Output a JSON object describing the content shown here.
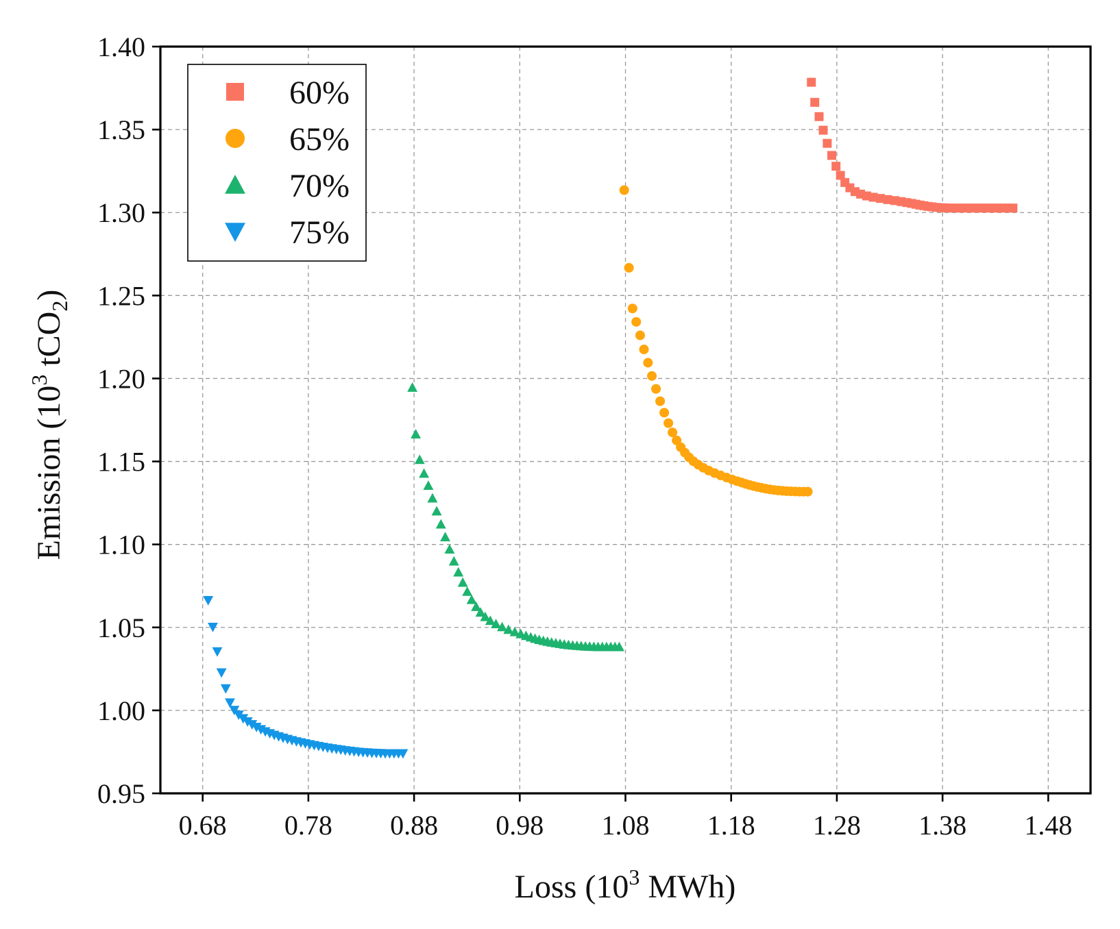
{
  "chart_data": {
    "type": "scatter",
    "title": "",
    "xlabel": {
      "main": "Loss (10",
      "sup": "3",
      "tail": " MWh)"
    },
    "ylabel": {
      "main": "Emission (10",
      "sup": "3",
      "mid": " tCO",
      "sub": "2",
      "tail": ")"
    },
    "xlim": [
      0.64,
      1.52
    ],
    "ylim": [
      0.95,
      1.4
    ],
    "xticks": [
      0.68,
      0.78,
      0.88,
      0.98,
      1.08,
      1.18,
      1.28,
      1.38,
      1.48
    ],
    "xtick_labels": [
      "0.68",
      "0.78",
      "0.88",
      "0.98",
      "1.08",
      "1.18",
      "1.28",
      "1.38",
      "1.48"
    ],
    "yticks": [
      0.95,
      1.0,
      1.05,
      1.1,
      1.15,
      1.2,
      1.25,
      1.3,
      1.35,
      1.4
    ],
    "ytick_labels": [
      "0.95",
      "1.00",
      "1.05",
      "1.10",
      "1.15",
      "1.20",
      "1.25",
      "1.30",
      "1.35",
      "1.40"
    ],
    "grid": true,
    "legend_position": "top-left",
    "series": [
      {
        "name": "60%",
        "marker": "square",
        "color": "#fa7561",
        "x": [
          1.2559,
          1.2591,
          1.2632,
          1.2671,
          1.2709,
          1.2752,
          1.2792,
          1.2834,
          1.2876,
          1.2923,
          1.2972,
          1.3025,
          1.3083,
          1.3145,
          1.3212,
          1.3281,
          1.3348,
          1.3409,
          1.3462,
          1.3508,
          1.3548,
          1.3586,
          1.3624,
          1.3662,
          1.3701,
          1.3742,
          1.3784,
          1.3828,
          1.3873,
          1.392,
          1.3968,
          1.4017,
          1.4067,
          1.4116,
          1.4166,
          1.4216,
          1.4266,
          1.4316,
          1.4366,
          1.4416,
          1.4466
        ],
        "y": [
          1.3785,
          1.3664,
          1.3578,
          1.3496,
          1.3417,
          1.3344,
          1.3279,
          1.3224,
          1.3181,
          1.3149,
          1.3126,
          1.3111,
          1.31,
          1.3092,
          1.3085,
          1.3078,
          1.3072,
          1.3066,
          1.306,
          1.3055,
          1.305,
          1.3045,
          1.3041,
          1.3037,
          1.3034,
          1.3031,
          1.3029,
          1.3028,
          1.3027,
          1.3027,
          1.3027,
          1.3027,
          1.3027,
          1.3027,
          1.3027,
          1.3027,
          1.3027,
          1.3027,
          1.3027,
          1.3027,
          1.3027
        ]
      },
      {
        "name": "65%",
        "marker": "circle",
        "color": "#ffa50d",
        "x": [
          1.0788,
          1.0833,
          1.0867,
          1.0902,
          1.0939,
          1.0975,
          1.1013,
          1.105,
          1.1089,
          1.1128,
          1.1167,
          1.1206,
          1.1245,
          1.1284,
          1.1323,
          1.1362,
          1.1401,
          1.1443,
          1.1488,
          1.1536,
          1.1588,
          1.1643,
          1.17,
          1.1757,
          1.181,
          1.1857,
          1.1899,
          1.1937,
          1.1974,
          1.2011,
          1.2049,
          1.2087,
          1.2126,
          1.2165,
          1.2205,
          1.2245,
          1.2285,
          1.2325,
          1.2365,
          1.2405,
          1.2445,
          1.2485,
          1.2525
        ],
        "y": [
          1.3135,
          1.2667,
          1.2422,
          1.2341,
          1.226,
          1.2175,
          1.2095,
          1.2015,
          1.1937,
          1.1863,
          1.1794,
          1.1731,
          1.1675,
          1.1627,
          1.1586,
          1.1553,
          1.1525,
          1.1501,
          1.1481,
          1.1462,
          1.1445,
          1.143,
          1.1416,
          1.1403,
          1.1391,
          1.1381,
          1.1373,
          1.1365,
          1.1358,
          1.1352,
          1.1346,
          1.1341,
          1.1336,
          1.1332,
          1.1328,
          1.1325,
          1.1323,
          1.1321,
          1.132,
          1.1319,
          1.1318,
          1.1318,
          1.1318
        ]
      },
      {
        "name": "70%",
        "marker": "triangle-up",
        "color": "#1db36e",
        "x": [
          0.8784,
          0.8816,
          0.8853,
          0.8894,
          0.8935,
          0.8974,
          0.9014,
          0.9054,
          0.9095,
          0.9136,
          0.9177,
          0.9219,
          0.9261,
          0.9303,
          0.9345,
          0.9387,
          0.9429,
          0.9473,
          0.9521,
          0.9575,
          0.9633,
          0.9693,
          0.9753,
          0.9809,
          0.9859,
          0.9904,
          0.9945,
          0.9984,
          1.0023,
          1.0062,
          1.0101,
          1.0141,
          1.0181,
          1.0221,
          1.0261,
          1.0301,
          1.0341,
          1.0381,
          1.0421,
          1.0461,
          1.0501,
          1.0541,
          1.0581,
          1.0621,
          1.0661,
          1.0701,
          1.0741
        ],
        "y": [
          1.1946,
          1.1665,
          1.1511,
          1.1428,
          1.1355,
          1.1279,
          1.1201,
          1.1122,
          1.1045,
          1.0971,
          1.0899,
          1.0833,
          1.0771,
          1.0716,
          1.0667,
          1.0625,
          1.0591,
          1.0564,
          1.0541,
          1.0521,
          1.0503,
          1.0487,
          1.0473,
          1.0461,
          1.045,
          1.0441,
          1.0433,
          1.0426,
          1.042,
          1.0415,
          1.041,
          1.0406,
          1.0402,
          1.0398,
          1.0395,
          1.0392,
          1.039,
          1.0388,
          1.0386,
          1.0385,
          1.0384,
          1.0383,
          1.0383,
          1.0383,
          1.0383,
          1.0383,
          1.0383
        ]
      },
      {
        "name": "75%",
        "marker": "triangle-down",
        "color": "#1496e6",
        "x": [
          0.6852,
          0.6896,
          0.6938,
          0.6978,
          0.7018,
          0.7058,
          0.7099,
          0.7141,
          0.7183,
          0.7225,
          0.7267,
          0.7309,
          0.7351,
          0.7393,
          0.7435,
          0.7477,
          0.7519,
          0.7561,
          0.7603,
          0.7645,
          0.7687,
          0.7729,
          0.7771,
          0.7813,
          0.7855,
          0.7897,
          0.7939,
          0.7981,
          0.8023,
          0.8065,
          0.8107,
          0.8149,
          0.8191,
          0.8233,
          0.8275,
          0.8317,
          0.8359,
          0.8401,
          0.8443,
          0.8485,
          0.8527,
          0.8569,
          0.8611,
          0.8653,
          0.8695
        ],
        "y": [
          1.0663,
          1.0502,
          1.0354,
          1.0227,
          1.0131,
          1.0046,
          1.0001,
          0.9973,
          0.9951,
          0.9932,
          0.9915,
          0.9899,
          0.9885,
          0.9872,
          0.9861,
          0.9851,
          0.9842,
          0.9834,
          0.9826,
          0.9819,
          0.9812,
          0.9806,
          0.98,
          0.9794,
          0.9789,
          0.9784,
          0.9779,
          0.9774,
          0.977,
          0.9766,
          0.9762,
          0.9758,
          0.9755,
          0.9752,
          0.9749,
          0.9747,
          0.9745,
          0.9743,
          0.9742,
          0.9741,
          0.974,
          0.974,
          0.974,
          0.974,
          0.974
        ]
      }
    ]
  }
}
